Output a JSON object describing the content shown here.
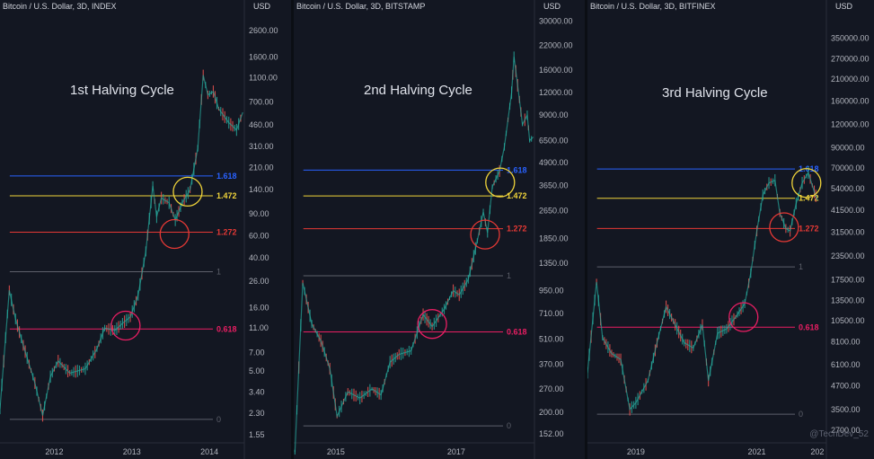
{
  "colors": {
    "background": "#131722",
    "up": "#26a69a",
    "down": "#ef5350",
    "fib_1618": "#2962ff",
    "fib_1472": "#f0d43a",
    "fib_1272": "#e53935",
    "fib_1": "#5d606b",
    "fib_0618": "#e91e63",
    "fib_0": "#5d606b"
  },
  "watermark": "@TechDev_52",
  "chart_data": [
    {
      "type": "line",
      "header": "Bitcoin / U.S. Dollar, 3D, INDEX",
      "currency": "USD",
      "title": "1st Halving Cycle",
      "scale": "log",
      "ylim": [
        1.4,
        3400
      ],
      "yticks": [
        "2600.00",
        "1600.00",
        "1100.00",
        "700.00",
        "460.00",
        "310.00",
        "210.00",
        "140.00",
        "90.00",
        "60.00",
        "40.00",
        "26.00",
        "16.00",
        "11.00",
        "7.00",
        "5.00",
        "3.40",
        "2.30",
        "1.55"
      ],
      "xticks": [
        "2012",
        "2013",
        "2014"
      ],
      "xlim": [
        2011.3,
        2014.45
      ],
      "fib_levels": [
        {
          "label": "1.618",
          "value": 180
        },
        {
          "label": "1.472",
          "value": 125
        },
        {
          "label": "1.272",
          "value": 64
        },
        {
          "label": "1",
          "value": 31
        },
        {
          "label": "0.618",
          "value": 10.8
        },
        {
          "label": "0",
          "value": 2.05
        }
      ],
      "price": [
        [
          2011.3,
          2.5
        ],
        [
          2011.42,
          22
        ],
        [
          2011.5,
          13
        ],
        [
          2011.6,
          8
        ],
        [
          2011.75,
          4
        ],
        [
          2011.85,
          2.2
        ],
        [
          2011.95,
          4.5
        ],
        [
          2012.05,
          6
        ],
        [
          2012.2,
          4.8
        ],
        [
          2012.4,
          5.2
        ],
        [
          2012.55,
          7.5
        ],
        [
          2012.65,
          11
        ],
        [
          2012.78,
          10.5
        ],
        [
          2012.88,
          12
        ],
        [
          2012.98,
          13.5
        ],
        [
          2013.08,
          20
        ],
        [
          2013.18,
          45
        ],
        [
          2013.27,
          150
        ],
        [
          2013.32,
          85
        ],
        [
          2013.38,
          120
        ],
        [
          2013.48,
          110
        ],
        [
          2013.56,
          80
        ],
        [
          2013.65,
          110
        ],
        [
          2013.75,
          140
        ],
        [
          2013.85,
          300
        ],
        [
          2013.92,
          1150
        ],
        [
          2013.98,
          800
        ],
        [
          2014.05,
          850
        ],
        [
          2014.12,
          620
        ],
        [
          2014.25,
          480
        ],
        [
          2014.35,
          420
        ],
        [
          2014.43,
          580
        ]
      ],
      "circles": [
        {
          "x": 2012.92,
          "y": 11.5,
          "color": "fib_0618"
        },
        {
          "x": 2013.55,
          "y": 62,
          "color": "fib_1272"
        },
        {
          "x": 2013.72,
          "y": 135,
          "color": "fib_1472"
        }
      ]
    },
    {
      "type": "line",
      "header": "Bitcoin / U.S. Dollar, 3D, BITSTAMP",
      "currency": "USD",
      "title": "2nd Halving Cycle",
      "scale": "log",
      "ylim": [
        140,
        32000
      ],
      "yticks": [
        "30000.00",
        "22000.00",
        "16000.00",
        "12000.00",
        "9000.00",
        "6500.00",
        "4900.00",
        "3650.00",
        "2650.00",
        "1850.00",
        "1350.00",
        "950.00",
        "710.00",
        "510.00",
        "370.00",
        "270.00",
        "200.00",
        "152.00"
      ],
      "xticks": [
        "2015",
        "2017"
      ],
      "xlim": [
        2014.3,
        2018.3
      ],
      "fib_levels": [
        {
          "label": "1.618",
          "value": 4450
        },
        {
          "label": "1.472",
          "value": 3200
        },
        {
          "label": "1.272",
          "value": 2100
        },
        {
          "label": "1",
          "value": 1150
        },
        {
          "label": "0.618",
          "value": 560
        },
        {
          "label": "0",
          "value": 168
        }
      ],
      "price": [
        [
          2014.32,
          120
        ],
        [
          2014.45,
          1050
        ],
        [
          2014.6,
          620
        ],
        [
          2014.75,
          500
        ],
        [
          2014.9,
          350
        ],
        [
          2015.02,
          190
        ],
        [
          2015.2,
          260
        ],
        [
          2015.4,
          240
        ],
        [
          2015.6,
          270
        ],
        [
          2015.75,
          250
        ],
        [
          2015.9,
          380
        ],
        [
          2016.05,
          420
        ],
        [
          2016.25,
          440
        ],
        [
          2016.45,
          700
        ],
        [
          2016.6,
          600
        ],
        [
          2016.8,
          750
        ],
        [
          2016.95,
          950
        ],
        [
          2017.05,
          900
        ],
        [
          2017.2,
          1100
        ],
        [
          2017.35,
          1800
        ],
        [
          2017.45,
          2600
        ],
        [
          2017.52,
          2000
        ],
        [
          2017.6,
          3600
        ],
        [
          2017.72,
          4400
        ],
        [
          2017.8,
          6000
        ],
        [
          2017.92,
          12000
        ],
        [
          2017.96,
          19000
        ],
        [
          2018.05,
          11000
        ],
        [
          2018.1,
          8000
        ],
        [
          2018.18,
          9000
        ],
        [
          2018.22,
          6500
        ],
        [
          2018.28,
          6800
        ]
      ],
      "circles": [
        {
          "x": 2016.6,
          "y": 620,
          "color": "fib_0618"
        },
        {
          "x": 2017.48,
          "y": 1950,
          "color": "fib_1272"
        },
        {
          "x": 2017.73,
          "y": 3800,
          "color": "fib_1472"
        }
      ]
    },
    {
      "type": "line",
      "header": "Bitcoin / U.S. Dollar, 3D, BITFINEX",
      "currency": "USD",
      "title": "3rd Halving Cycle",
      "scale": "log",
      "ylim": [
        2500,
        420000
      ],
      "yticks": [
        "350000.00",
        "270000.00",
        "210000.00",
        "160000.00",
        "120000.00",
        "90000.00",
        "70000.00",
        "54000.00",
        "41500.00",
        "31500.00",
        "23500.00",
        "17500.00",
        "13500.00",
        "10500.00",
        "8100.00",
        "6100.00",
        "4700.00",
        "3500.00",
        "2700.00"
      ],
      "xticks": [
        "2019",
        "2021",
        "202"
      ],
      "xlim": [
        2018.2,
        2022.15
      ],
      "fib_levels": [
        {
          "label": "1.618",
          "value": 69000
        },
        {
          "label": "1.472",
          "value": 48000
        },
        {
          "label": "1.272",
          "value": 33000
        },
        {
          "label": "1",
          "value": 20500
        },
        {
          "label": "0.618",
          "value": 9700
        },
        {
          "label": "0",
          "value": 3300
        }
      ],
      "price": [
        [
          2018.2,
          5500
        ],
        [
          2018.35,
          17000
        ],
        [
          2018.45,
          8500
        ],
        [
          2018.6,
          7000
        ],
        [
          2018.75,
          6500
        ],
        [
          2018.9,
          3500
        ],
        [
          2019.0,
          3800
        ],
        [
          2019.2,
          5000
        ],
        [
          2019.35,
          8000
        ],
        [
          2019.5,
          12500
        ],
        [
          2019.65,
          10000
        ],
        [
          2019.8,
          8000
        ],
        [
          2019.95,
          7500
        ],
        [
          2020.1,
          10000
        ],
        [
          2020.2,
          5000
        ],
        [
          2020.35,
          9000
        ],
        [
          2020.5,
          9500
        ],
        [
          2020.65,
          11000
        ],
        [
          2020.8,
          13000
        ],
        [
          2020.9,
          19000
        ],
        [
          2021.0,
          32000
        ],
        [
          2021.1,
          50000
        ],
        [
          2021.2,
          58000
        ],
        [
          2021.3,
          60000
        ],
        [
          2021.38,
          40000
        ],
        [
          2021.48,
          33000
        ],
        [
          2021.55,
          32000
        ],
        [
          2021.65,
          45000
        ],
        [
          2021.75,
          58000
        ],
        [
          2021.85,
          66000
        ],
        [
          2021.95,
          52000
        ],
        [
          2022.0,
          47000
        ]
      ],
      "circles": [
        {
          "x": 2020.78,
          "y": 11000,
          "color": "fib_0618"
        },
        {
          "x": 2021.45,
          "y": 33500,
          "color": "fib_1272"
        },
        {
          "x": 2021.82,
          "y": 58000,
          "color": "fib_1472"
        }
      ]
    }
  ]
}
